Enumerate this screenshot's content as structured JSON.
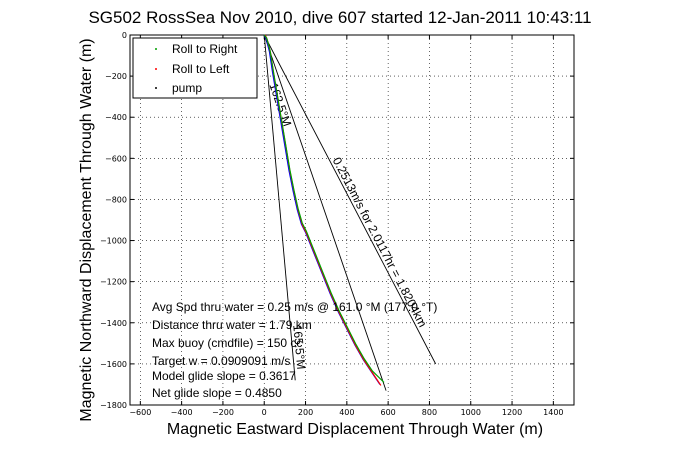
{
  "chart_data": {
    "type": "line",
    "title": "SG502 RossSea Nov 2010, dive 607 started 12-Jan-2011 10:43:11",
    "xlabel": "Magnetic Eastward Displacement Through Water (m)",
    "ylabel": "Magnetic Northward Displacement Through Water (m)",
    "xlim": [
      -650,
      1500
    ],
    "ylim": [
      -1800,
      0
    ],
    "xticks": [
      -600,
      -400,
      -200,
      0,
      200,
      400,
      600,
      800,
      1000,
      1200,
      1400
    ],
    "yticks": [
      0,
      -200,
      -400,
      -600,
      -800,
      -1000,
      -1200,
      -1400,
      -1600,
      -1800
    ],
    "grid": true,
    "legend": {
      "position": "top-left",
      "entries": [
        {
          "label": "Roll to Right",
          "color": "#00a000"
        },
        {
          "label": "Roll to Left",
          "color": "#ff0000"
        },
        {
          "label": "pump",
          "color": "#000000"
        }
      ]
    },
    "series": [
      {
        "color": "#0000ff",
        "x": [
          0,
          10,
          25,
          40,
          60,
          80,
          100,
          120,
          140,
          160,
          180,
          200,
          240,
          280,
          320,
          360,
          400,
          440,
          480,
          520,
          560
        ],
        "y": [
          0,
          -20,
          -80,
          -180,
          -300,
          -420,
          -540,
          -660,
          -760,
          -850,
          -920,
          -960,
          -1060,
          -1160,
          -1260,
          -1350,
          -1430,
          -1510,
          -1580,
          -1640,
          -1700
        ]
      },
      {
        "color": "#ff0000",
        "x": [
          5,
          15,
          30,
          45,
          65,
          85,
          105,
          125,
          145,
          165,
          185,
          205,
          245,
          285,
          325,
          365,
          405,
          445,
          485,
          525,
          565
        ],
        "y": [
          0,
          -25,
          -85,
          -185,
          -305,
          -425,
          -545,
          -665,
          -765,
          -855,
          -925,
          -965,
          -1065,
          -1165,
          -1265,
          -1355,
          -1435,
          -1515,
          -1585,
          -1645,
          -1705
        ]
      },
      {
        "color": "#00a000",
        "x": [
          0,
          12,
          28,
          44,
          64,
          84,
          104,
          124,
          144,
          164,
          184,
          204,
          244,
          284,
          324,
          364,
          404,
          444,
          484,
          524,
          580
        ],
        "y": [
          0,
          -15,
          -75,
          -175,
          -295,
          -415,
          -535,
          -655,
          -755,
          -845,
          -915,
          -955,
          -1055,
          -1155,
          -1255,
          -1345,
          -1425,
          -1505,
          -1575,
          -1635,
          -1690
        ]
      }
    ],
    "reference_lines": [
      {
        "x": [
          0,
          830
        ],
        "y": [
          0,
          -1600
        ],
        "label": "0.2513m/s for 2.0117hr = 1.8204km"
      },
      {
        "x": [
          0,
          590
        ],
        "y": [
          0,
          -1730
        ],
        "label": "162.5°M"
      },
      {
        "x": [
          0,
          150
        ],
        "y": [
          0,
          -1680
        ],
        "label": "165.5°M"
      }
    ],
    "annotations": [
      "Avg Spd thru water = 0.25 m/s @ 161.0  °M (177.0 °T)",
      "Distance thru water = 1.79 km",
      "Max buoy (cmdfile) = 150 cc",
      "Target w = 0.0909091 m/s",
      "Model glide slope = 0.3617",
      "Net glide slope = 0.4850"
    ]
  }
}
